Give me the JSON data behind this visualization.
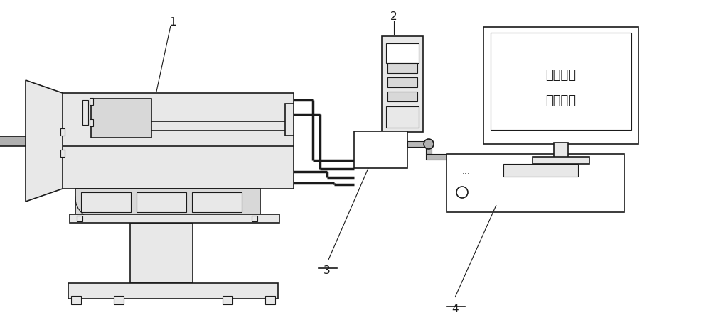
{
  "bg_color": "#ffffff",
  "lc": "#1a1a1a",
  "gray_fill": "#d8d8d8",
  "gray_med": "#b0b0b0",
  "gray_light": "#e8e8e8",
  "gray_cable": "#b8b8b8",
  "label_1": "1",
  "label_2": "2",
  "label_3": "3",
  "label_4": "4",
  "monitor_text_line1": "数据采集",
  "monitor_text_line2": "控制系统",
  "lw_thin": 0.8,
  "lw_main": 1.2,
  "lw_thick": 2.5
}
